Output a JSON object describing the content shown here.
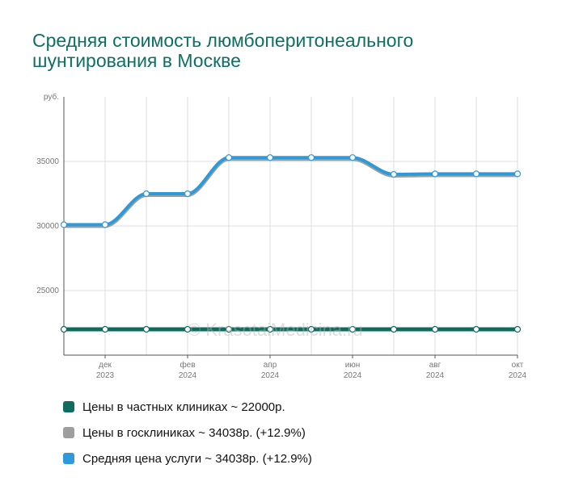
{
  "title": "Средняя стоимость люмбоперитонеального шунтирования в Москве",
  "watermark": "© KrasotaiMedicina.ru",
  "chart_data": {
    "type": "line",
    "ylabel": "руб.",
    "ylim": [
      20000,
      40000
    ],
    "yticks": [
      25000,
      30000,
      35000
    ],
    "grid": true,
    "x_tick_labels": [
      {
        "index": 1,
        "month": "дек",
        "year": "2023"
      },
      {
        "index": 3,
        "month": "фев",
        "year": "2024"
      },
      {
        "index": 5,
        "month": "апр",
        "year": "2024"
      },
      {
        "index": 7,
        "month": "июн",
        "year": "2024"
      },
      {
        "index": 9,
        "month": "авг",
        "year": "2024"
      },
      {
        "index": 11,
        "month": "окт",
        "year": "2024"
      }
    ],
    "series": [
      {
        "name": "Цены в частных клиниках ~ 22000р.",
        "color": "#0e6b5e",
        "values": [
          22000,
          22000,
          22000,
          22000,
          22000,
          22000,
          22000,
          22000,
          22000,
          22000,
          22000,
          22000
        ]
      },
      {
        "name": "Цены в госклиниках ~ 34038р. (+12.9%)",
        "color": "#9e9e9e",
        "values": [
          30100,
          30100,
          32500,
          32500,
          35300,
          35300,
          35300,
          35300,
          34000,
          34038,
          34038,
          34038
        ]
      },
      {
        "name": "Средняя цена услуги ~ 34038р. (+12.9%)",
        "color": "#2e9ad9",
        "values": [
          30100,
          30100,
          32500,
          32500,
          35300,
          35300,
          35300,
          35300,
          34000,
          34038,
          34038,
          34038
        ]
      }
    ]
  }
}
